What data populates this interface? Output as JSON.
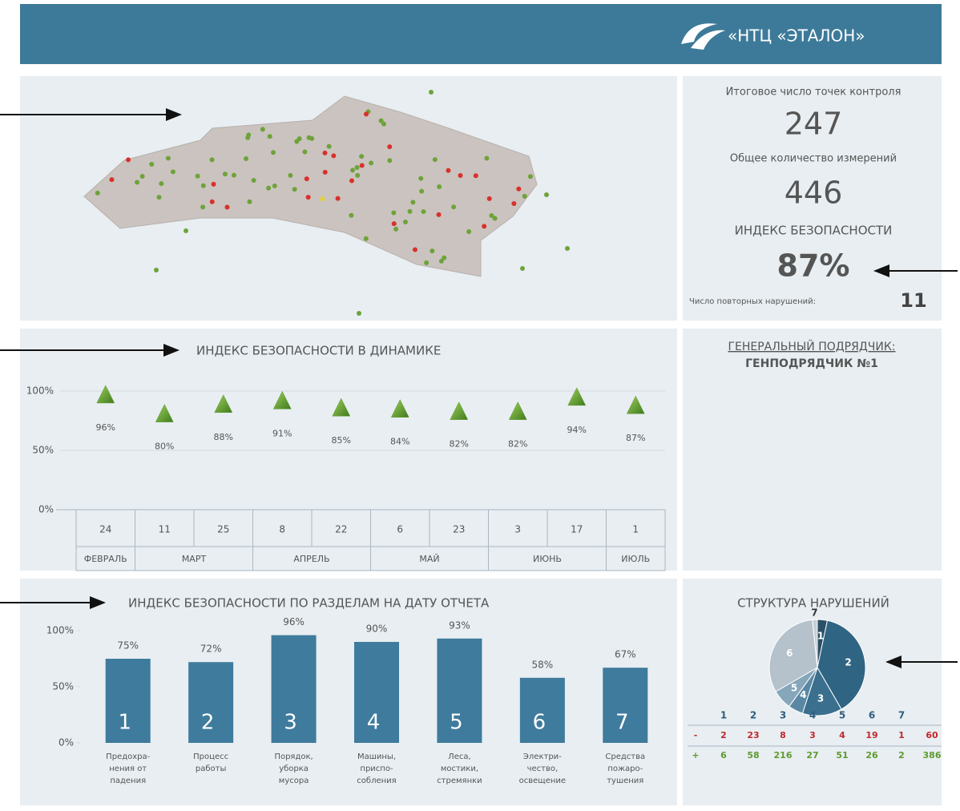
{
  "header": {
    "logo": "«НТЦ «ЭТАЛОН»"
  },
  "summary": {
    "points_label": "Итоговое число точек контроля",
    "points": 247,
    "measurements_label": "Общее количество измерений",
    "measurements": 446,
    "index_label": "ИНДЕКС БЕЗОПАСНОСТИ",
    "index": "87%",
    "repeat_label": "Число повторных нарушений:",
    "repeat": 11
  },
  "contractor": {
    "label": "ГЕНЕРАЛЬНЫЙ ПОДРЯДЧИК:",
    "name": "ГЕНПОДРЯДЧИК №1"
  },
  "chart_data": [
    {
      "type": "scatter",
      "title": "ИНДЕКС БЕЗОПАСНОСТИ В ДИНАМИКЕ",
      "categories": [
        24,
        11,
        25,
        8,
        22,
        6,
        23,
        3,
        17,
        1
      ],
      "groups": [
        "ФЕВРАЛЬ",
        "МАРТ",
        null,
        "АПРЕЛЬ",
        null,
        "МАЙ",
        null,
        "ИЮНЬ",
        null,
        "ИЮЛЬ"
      ],
      "values": [
        96,
        80,
        88,
        91,
        85,
        84,
        82,
        82,
        94,
        87
      ],
      "value_labels": [
        "96%",
        "80%",
        "88%",
        "91%",
        "85%",
        "84%",
        "82%",
        "82%",
        "94%",
        "87%"
      ],
      "color": "#5f9a2e",
      "ylim": [
        0,
        100
      ],
      "yticks": [
        {
          "value": 0,
          "label": "0%"
        },
        {
          "value": 50,
          "label": "50%"
        },
        {
          "value": 100,
          "label": "100%"
        }
      ],
      "grid": true
    },
    {
      "type": "bar",
      "title": "ИНДЕКС БЕЗОПАСНОСТИ ПО РАЗДЕЛАМ НА ДАТУ ОТЧЕТА",
      "categories": [
        [
          "Предохра-",
          "нения от",
          "падения"
        ],
        [
          "Процесс",
          "работы"
        ],
        [
          "Порядок,",
          "уборка",
          "мусора"
        ],
        [
          "Машины,",
          "приспо-",
          "собления"
        ],
        [
          "Леса,",
          "мостики,",
          "стремянки"
        ],
        [
          "Электри-",
          "чество,",
          "освещение"
        ],
        [
          "Средства",
          "пожаро-",
          "тушения"
        ]
      ],
      "bar_labels": [
        "1",
        "2",
        "3",
        "4",
        "5",
        "6",
        "7"
      ],
      "values": [
        75,
        72,
        96,
        90,
        93,
        58,
        67
      ],
      "value_labels": [
        "75%",
        "72%",
        "96%",
        "90%",
        "93%",
        "58%",
        "67%"
      ],
      "color": "#3f7b9c",
      "ylim": [
        0,
        100
      ],
      "yticks": [
        {
          "value": 0,
          "label": "0%"
        },
        {
          "value": 50,
          "label": "50%"
        },
        {
          "value": 100,
          "label": "100%"
        }
      ]
    },
    {
      "type": "pie",
      "title": "СТРУКТУРА НАРУШЕНИЙ",
      "categories": [
        "1",
        "2",
        "3",
        "4",
        "5",
        "6",
        "7"
      ],
      "colors": [
        "#2a4f66",
        "#2f6483",
        "#3a6f8e",
        "#5a88a4",
        "#86a6ba",
        "#b5c1cb",
        "#c7cfd6"
      ],
      "series": [
        {
          "name": "-",
          "color": "#c0282d",
          "values": [
            2,
            23,
            8,
            3,
            4,
            19,
            1
          ],
          "total": 60
        },
        {
          "name": "+",
          "color": "#5f9a2e",
          "values": [
            6,
            58,
            216,
            27,
            51,
            26,
            2
          ],
          "total": 386
        }
      ]
    }
  ]
}
